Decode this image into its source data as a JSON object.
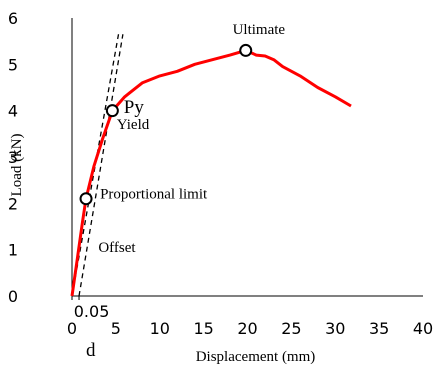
{
  "chart_data": {
    "type": "line",
    "xlabel": "Displacement (mm)",
    "ylabel": "Load  (kN)",
    "xlim": [
      0,
      40
    ],
    "ylim": [
      0,
      6
    ],
    "xticks": [
      "0",
      "5",
      "10",
      "15",
      "20",
      "25",
      "30",
      "35",
      "40"
    ],
    "yticks": [
      "0",
      "1",
      "2",
      "3",
      "4",
      "5",
      "6"
    ],
    "grid": false,
    "colors": {
      "curve": "#ff0000",
      "offset_lines": "#000000"
    },
    "series": [
      {
        "values": [
          [
            0,
            0
          ],
          [
            0.6,
            0.8
          ],
          [
            1.2,
            1.6
          ],
          [
            1.6,
            2.1
          ],
          [
            2.5,
            2.8
          ],
          [
            3.5,
            3.4
          ],
          [
            4.6,
            4.0
          ],
          [
            6,
            4.3
          ],
          [
            8,
            4.6
          ],
          [
            10,
            4.75
          ],
          [
            12,
            4.85
          ],
          [
            14,
            5.0
          ],
          [
            16,
            5.1
          ],
          [
            18,
            5.2
          ],
          [
            19.8,
            5.3
          ],
          [
            21,
            5.2
          ],
          [
            22,
            5.18
          ],
          [
            23,
            5.1
          ],
          [
            24,
            4.95
          ],
          [
            26,
            4.75
          ],
          [
            28,
            4.5
          ],
          [
            30,
            4.3
          ],
          [
            31.8,
            4.1
          ]
        ]
      }
    ],
    "offset_lines": [
      {
        "from": [
          0.8,
          0
        ],
        "to": [
          5.8,
          5.65
        ]
      },
      {
        "from": [
          0,
          0
        ],
        "to": [
          5.3,
          5.65
        ]
      }
    ],
    "markers": [
      {
        "x": 1.6,
        "y": 2.1
      },
      {
        "x": 4.6,
        "y": 4.0
      },
      {
        "x": 19.8,
        "y": 5.3
      }
    ],
    "annotations": [
      {
        "text": "Ultimate",
        "x": 18.3,
        "y": 5.65,
        "style": "ann"
      },
      {
        "text": "Py",
        "x": 5.9,
        "y": 3.95,
        "style": "ann-big"
      },
      {
        "text": "Yield",
        "x": 5.1,
        "y": 3.6,
        "style": "ann"
      },
      {
        "text": "Proportional limit",
        "x": 3.2,
        "y": 2.1,
        "style": "ann"
      },
      {
        "text": "Offset",
        "x": 3.0,
        "y": 0.95,
        "style": "ann"
      },
      {
        "text": "0.05",
        "x": 0.2,
        "y": -0.45,
        "style": "ann-sans"
      },
      {
        "text": "d",
        "x": 1.6,
        "y": -1.3,
        "style": "ann-big"
      }
    ]
  }
}
